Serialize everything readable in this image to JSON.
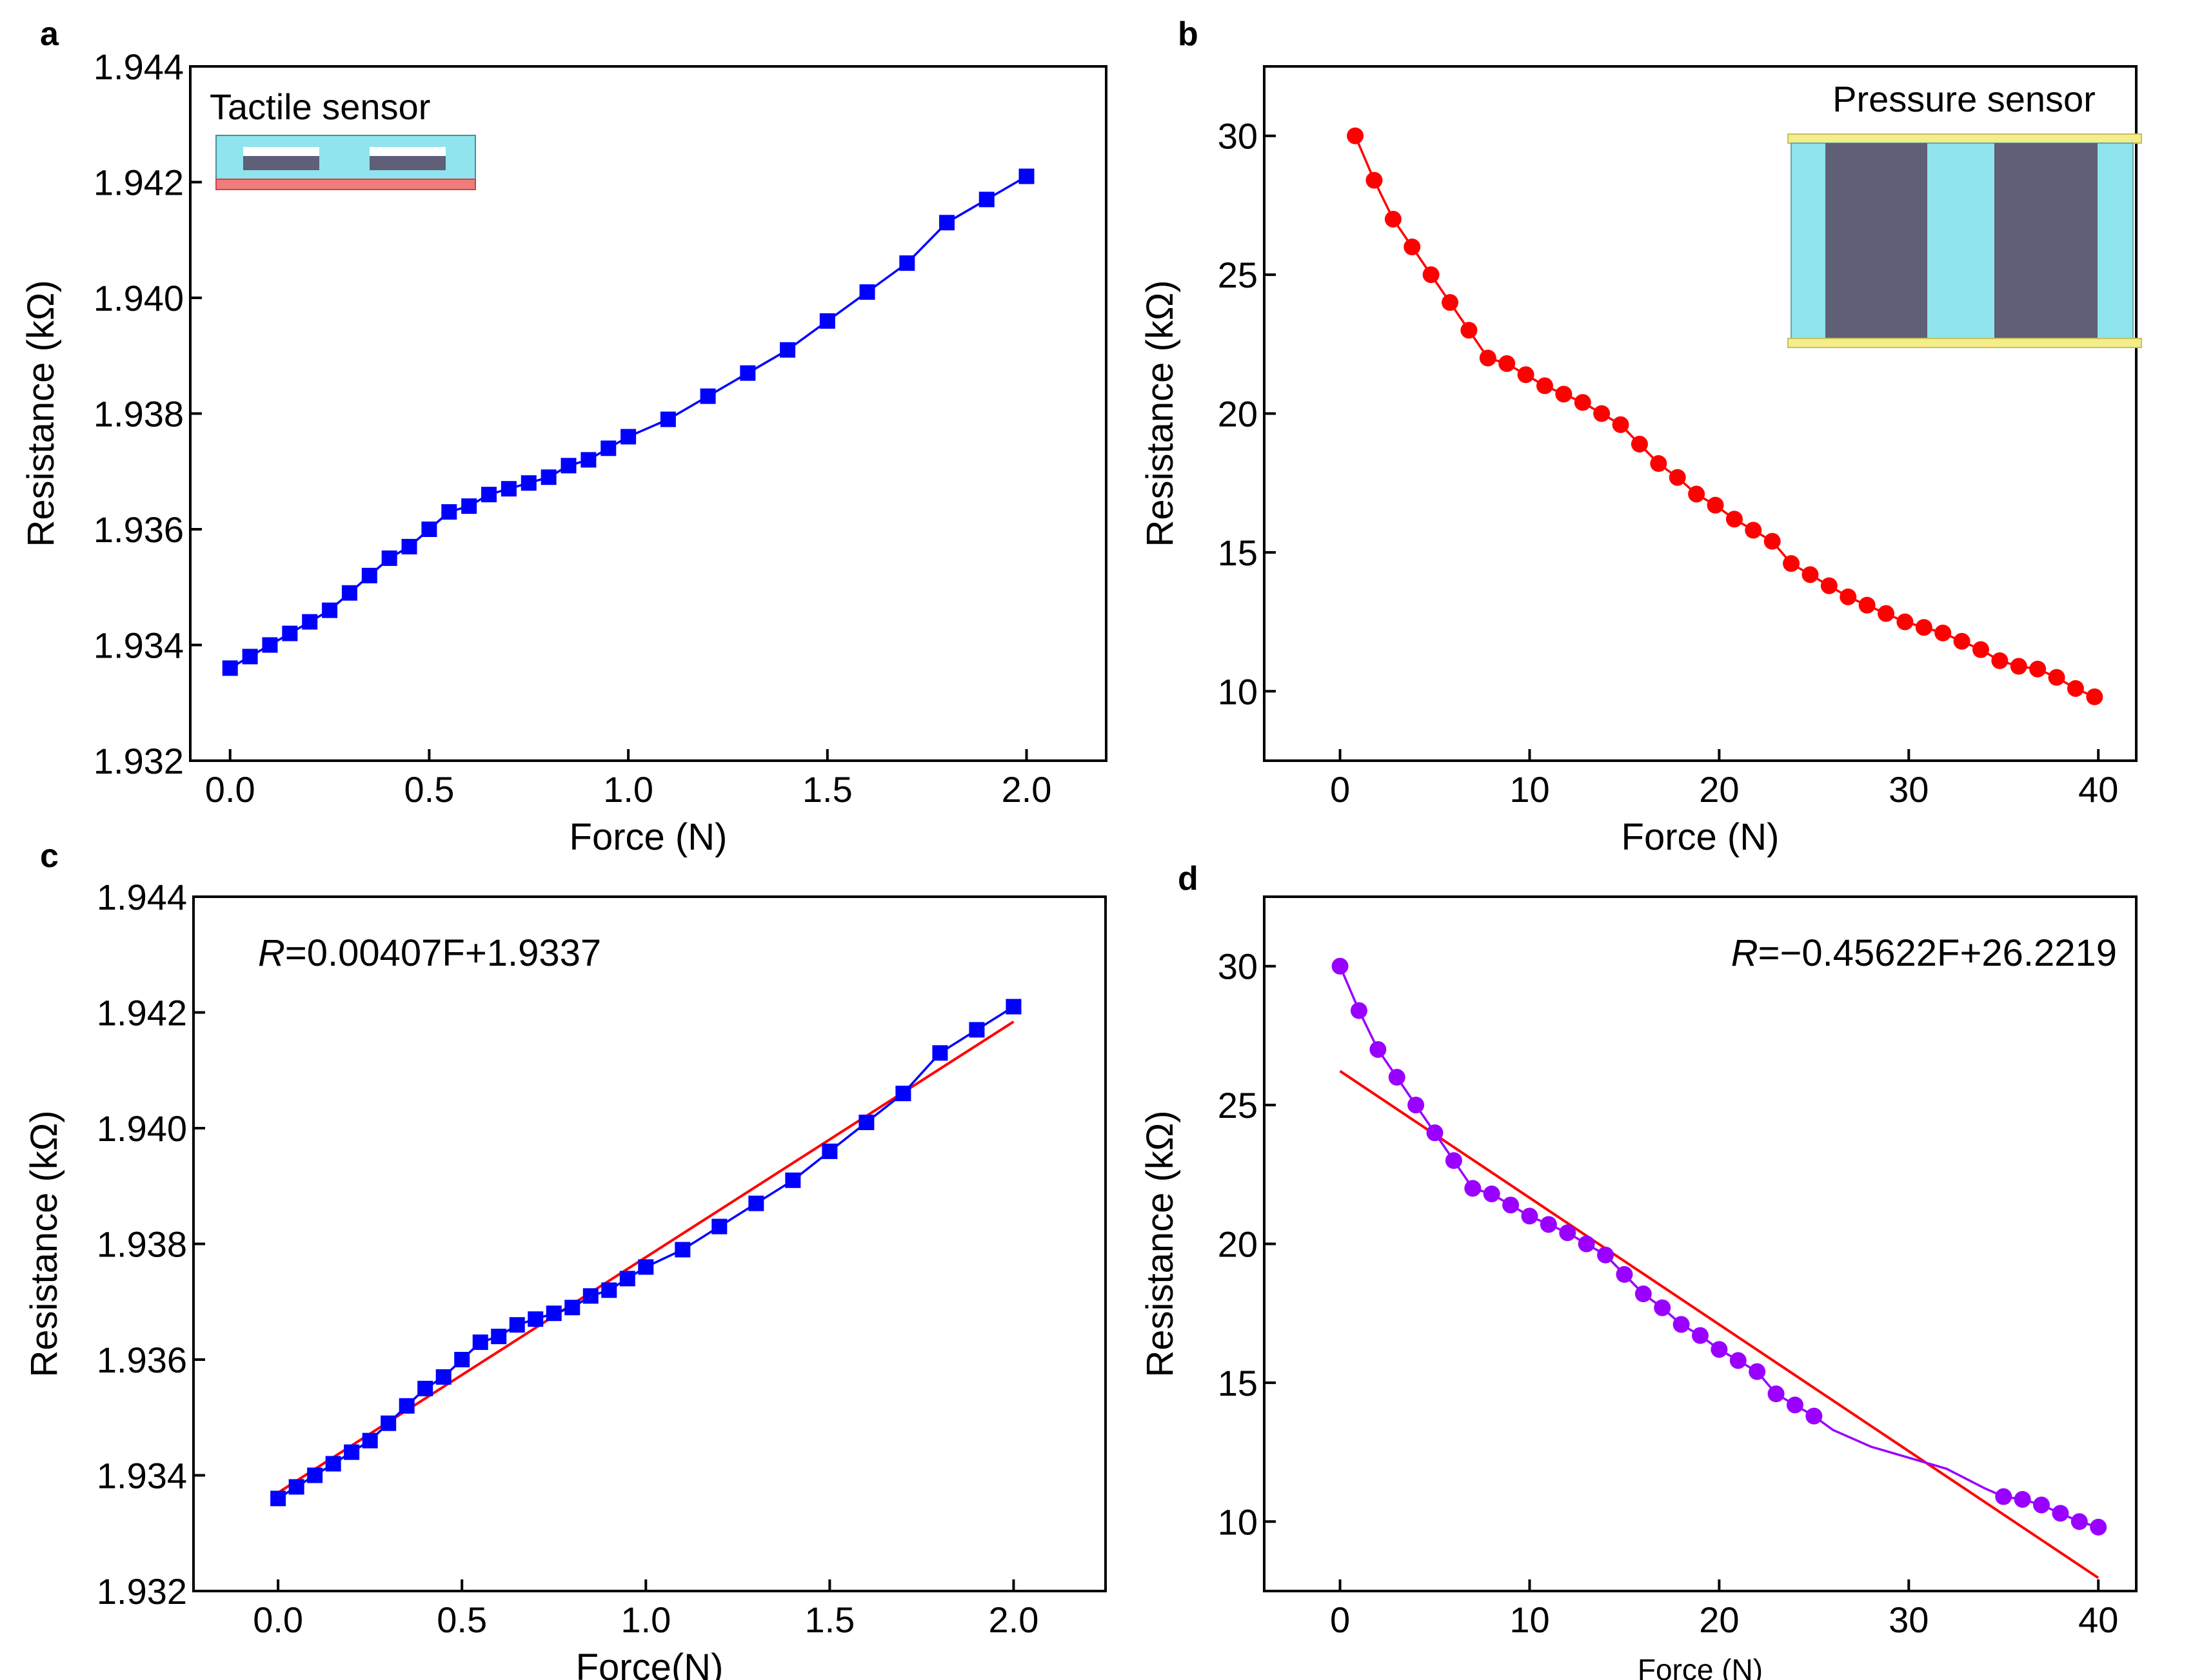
{
  "chart_data": [
    {
      "id": "a",
      "panel_label": "a",
      "type": "line",
      "xlabel": "Force (N)",
      "ylabel": "Resistance (kΩ)",
      "xlim": [
        -0.1,
        2.2
      ],
      "ylim": [
        1.932,
        1.944
      ],
      "xticks": [
        0.0,
        0.5,
        1.0,
        1.5,
        2.0
      ],
      "xtick_labels": [
        "0.0",
        "0.5",
        "1.0",
        "1.5",
        "2.0"
      ],
      "yticks": [
        1.932,
        1.934,
        1.936,
        1.938,
        1.94,
        1.942,
        1.944
      ],
      "ytick_labels": [
        "1.932",
        "1.934",
        "1.936",
        "1.938",
        "1.940",
        "1.942",
        "1.944"
      ],
      "inset_title": "Tactile sensor",
      "inset_kind": "tactile",
      "series": [
        {
          "name": "tactile",
          "color": "#0000ff",
          "marker": "square",
          "x": [
            0.0,
            0.05,
            0.1,
            0.15,
            0.2,
            0.25,
            0.3,
            0.35,
            0.4,
            0.45,
            0.5,
            0.55,
            0.6,
            0.65,
            0.7,
            0.75,
            0.8,
            0.85,
            0.9,
            0.95,
            1.0,
            1.1,
            1.2,
            1.3,
            1.4,
            1.5,
            1.6,
            1.7,
            1.8,
            1.9,
            2.0
          ],
          "y": [
            1.9336,
            1.9338,
            1.934,
            1.9342,
            1.9344,
            1.9346,
            1.9349,
            1.9352,
            1.9355,
            1.9357,
            1.936,
            1.9363,
            1.9364,
            1.9366,
            1.9367,
            1.9368,
            1.9369,
            1.9371,
            1.9372,
            1.9374,
            1.9376,
            1.9379,
            1.9383,
            1.9387,
            1.9391,
            1.9396,
            1.9401,
            1.9406,
            1.9413,
            1.9417,
            1.9421
          ]
        }
      ]
    },
    {
      "id": "b",
      "panel_label": "b",
      "type": "line",
      "xlabel": "Force  (N)",
      "ylabel": "Resistance (kΩ)",
      "xlim": [
        -4,
        42
      ],
      "ylim": [
        7.5,
        32.5
      ],
      "xticks": [
        0,
        10,
        20,
        30,
        40
      ],
      "xtick_labels": [
        "0",
        "10",
        "20",
        "30",
        "40"
      ],
      "yticks": [
        10,
        15,
        20,
        25,
        30
      ],
      "ytick_labels": [
        "10",
        "15",
        "20",
        "25",
        "30"
      ],
      "inset_title": "Pressure sensor",
      "inset_kind": "pressure",
      "series": [
        {
          "name": "pressure",
          "color": "#ff0000",
          "marker": "circle",
          "x": [
            0.8,
            1.8,
            2.8,
            3.8,
            4.8,
            5.8,
            6.8,
            7.8,
            8.8,
            9.8,
            10.8,
            11.8,
            12.8,
            13.8,
            14.8,
            15.8,
            16.8,
            17.8,
            18.8,
            19.8,
            20.8,
            21.8,
            22.8,
            23.8,
            24.8,
            25.8,
            26.8,
            27.8,
            28.8,
            29.8,
            30.8,
            31.8,
            32.8,
            33.8,
            34.8,
            35.8,
            36.8,
            37.8,
            38.8,
            39.8
          ],
          "y": [
            30.0,
            28.4,
            27.0,
            26.0,
            25.0,
            24.0,
            23.0,
            22.0,
            21.8,
            21.4,
            21.0,
            20.7,
            20.4,
            20.0,
            19.6,
            18.9,
            18.2,
            17.7,
            17.1,
            16.7,
            16.2,
            15.8,
            15.4,
            14.6,
            14.2,
            13.8,
            13.4,
            13.1,
            12.8,
            12.5,
            12.3,
            12.1,
            11.8,
            11.5,
            11.1,
            10.9,
            10.8,
            10.5,
            10.1,
            9.8
          ]
        }
      ]
    },
    {
      "id": "c",
      "panel_label": "c",
      "type": "line",
      "xlabel": "Force(N)",
      "ylabel": "Resistance (kΩ)",
      "xlim": [
        -0.23,
        2.25
      ],
      "ylim": [
        1.932,
        1.944
      ],
      "xticks": [
        0.0,
        0.5,
        1.0,
        1.5,
        2.0
      ],
      "xtick_labels": [
        "0.0",
        "0.5",
        "1.0",
        "1.5",
        "2.0"
      ],
      "yticks": [
        1.932,
        1.934,
        1.936,
        1.938,
        1.94,
        1.942,
        1.944
      ],
      "ytick_labels": [
        "1.932",
        "1.934",
        "1.936",
        "1.938",
        "1.940",
        "1.942",
        "1.944"
      ],
      "equation_symbol": "R",
      "equation_rest": "=0.00407F+1.9337",
      "fit": {
        "color": "#ff0000",
        "slope": 0.00407,
        "intercept": 1.9337,
        "x_range": [
          0.0,
          2.0
        ]
      },
      "series": [
        {
          "name": "tactile",
          "color": "#0000ff",
          "marker": "square",
          "x": [
            0.0,
            0.05,
            0.1,
            0.15,
            0.2,
            0.25,
            0.3,
            0.35,
            0.4,
            0.45,
            0.5,
            0.55,
            0.6,
            0.65,
            0.7,
            0.75,
            0.8,
            0.85,
            0.9,
            0.95,
            1.0,
            1.1,
            1.2,
            1.3,
            1.4,
            1.5,
            1.6,
            1.7,
            1.8,
            1.9,
            2.0
          ],
          "y": [
            1.9336,
            1.9338,
            1.934,
            1.9342,
            1.9344,
            1.9346,
            1.9349,
            1.9352,
            1.9355,
            1.9357,
            1.936,
            1.9363,
            1.9364,
            1.9366,
            1.9367,
            1.9368,
            1.9369,
            1.9371,
            1.9372,
            1.9374,
            1.9376,
            1.9379,
            1.9383,
            1.9387,
            1.9391,
            1.9396,
            1.9401,
            1.9406,
            1.9413,
            1.9417,
            1.9421
          ]
        }
      ]
    },
    {
      "id": "d",
      "panel_label": "d",
      "type": "line",
      "xlabel": "Force (N)",
      "ylabel": "Resistance (kΩ)",
      "xlim": [
        -4,
        42
      ],
      "ylim": [
        7.5,
        32.5
      ],
      "xticks": [
        0,
        10,
        20,
        30,
        40
      ],
      "xtick_labels": [
        "0",
        "10",
        "20",
        "30",
        "40"
      ],
      "yticks": [
        10,
        15,
        20,
        25,
        30
      ],
      "ytick_labels": [
        "10",
        "15",
        "20",
        "25",
        "30"
      ],
      "equation_symbol": "R",
      "equation_rest": "=−0.45622F+26.2219",
      "fit": {
        "color": "#ff0000",
        "slope": -0.45622,
        "intercept": 26.2219,
        "x_range": [
          0,
          40
        ]
      },
      "series": [
        {
          "name": "pressure",
          "color": "#9900ff",
          "marker": "circle",
          "x": [
            0,
            1,
            2,
            3,
            4,
            5,
            6,
            7,
            8,
            9,
            10,
            11,
            12,
            13,
            14,
            15,
            16,
            17,
            18,
            19,
            20,
            21,
            22,
            23,
            24,
            25,
            35,
            36,
            37,
            38,
            39,
            40
          ],
          "y": [
            30.0,
            28.4,
            27.0,
            26.0,
            25.0,
            24.0,
            23.0,
            22.0,
            21.8,
            21.4,
            21.0,
            20.7,
            20.4,
            20.0,
            19.6,
            18.9,
            18.2,
            17.7,
            17.1,
            16.7,
            16.2,
            15.8,
            15.4,
            14.6,
            14.2,
            13.8,
            10.9,
            10.8,
            10.6,
            10.3,
            10.0,
            9.8
          ],
          "curve_x": [
            25,
            26,
            28,
            30,
            31,
            32,
            34,
            35
          ],
          "curve_y": [
            13.8,
            13.3,
            12.7,
            12.3,
            12.1,
            11.9,
            11.2,
            10.9
          ]
        }
      ]
    }
  ]
}
